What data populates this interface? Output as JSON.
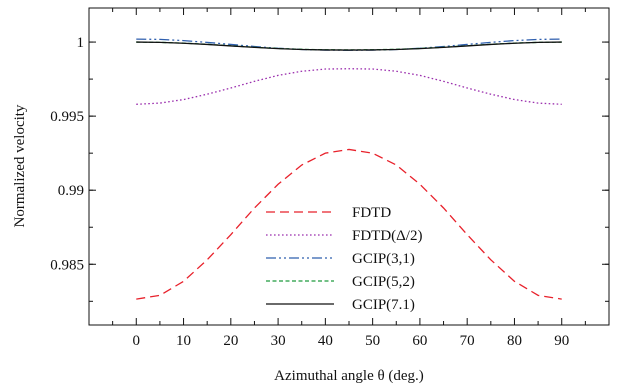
{
  "chart_data": {
    "type": "line",
    "xlabel": "Azimuthal angle θ (deg.)",
    "ylabel": "Normalized velocity",
    "xlim": [
      -10,
      100
    ],
    "ylim": [
      0.9809,
      1.0023
    ],
    "x_ticks": [
      0,
      10,
      20,
      30,
      40,
      50,
      60,
      70,
      80,
      90
    ],
    "x_tick_labels": [
      "0",
      "10",
      "20",
      "30",
      "40",
      "50",
      "60",
      "70",
      "80",
      "90"
    ],
    "y_ticks": [
      0.985,
      0.99,
      0.995,
      1.0
    ],
    "y_tick_labels": [
      "0.985",
      "0.99",
      "0.995",
      "1"
    ],
    "legend_position": "center",
    "grid": false,
    "x": [
      0,
      5,
      10,
      15,
      20,
      25,
      30,
      35,
      40,
      45,
      50,
      55,
      60,
      65,
      70,
      75,
      80,
      85,
      90
    ],
    "series": [
      {
        "name": "FDTD",
        "color": "#e8212b",
        "dash": "dashed",
        "values": [
          0.98265,
          0.9829,
          0.98385,
          0.9853,
          0.987,
          0.9888,
          0.9904,
          0.9917,
          0.9925,
          0.99275,
          0.9925,
          0.9917,
          0.9904,
          0.9888,
          0.987,
          0.9853,
          0.98385,
          0.9829,
          0.98265
        ]
      },
      {
        "name": "FDTD(Δ/2)",
        "color": "#9b2fae",
        "dash": "dotted",
        "values": [
          0.9958,
          0.99588,
          0.99612,
          0.99648,
          0.9969,
          0.99735,
          0.99775,
          0.99803,
          0.99818,
          0.9982,
          0.99818,
          0.99803,
          0.99775,
          0.99735,
          0.9969,
          0.99648,
          0.99612,
          0.99588,
          0.9958
        ]
      },
      {
        "name": "GCIP(3,1)",
        "color": "#2f5fae",
        "dash": "dashdotdot",
        "values": [
          1.0002,
          1.00018,
          1.0001,
          0.99998,
          0.99984,
          0.9997,
          0.99958,
          0.9995,
          0.99946,
          0.99945,
          0.99946,
          0.9995,
          0.99958,
          0.9997,
          0.99984,
          0.99998,
          1.0001,
          1.00018,
          1.0002
        ]
      },
      {
        "name": "GCIP(5,2)",
        "color": "#1f9a3e",
        "dash": "shortdash",
        "values": [
          1.0,
          0.99998,
          0.99993,
          0.99985,
          0.99975,
          0.99965,
          0.99957,
          0.99951,
          0.99948,
          0.99947,
          0.99948,
          0.99951,
          0.99957,
          0.99965,
          0.99975,
          0.99985,
          0.99993,
          0.99998,
          1.0
        ]
      },
      {
        "name": "GCIP(7.1)",
        "color": "#111111",
        "dash": "solid",
        "values": [
          1.0,
          0.99998,
          0.99992,
          0.99984,
          0.99974,
          0.99964,
          0.99956,
          0.9995,
          0.99947,
          0.99946,
          0.99947,
          0.9995,
          0.99956,
          0.99964,
          0.99974,
          0.99984,
          0.99992,
          0.99998,
          1.0
        ]
      }
    ]
  }
}
